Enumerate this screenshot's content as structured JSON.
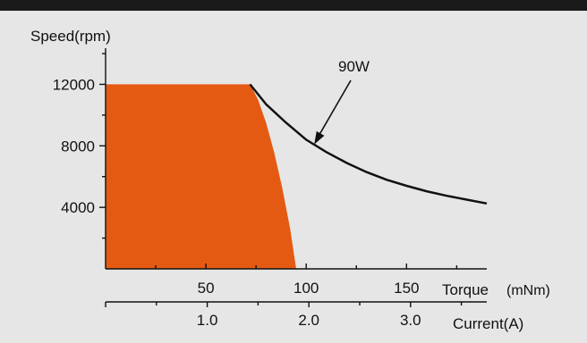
{
  "chart_data": {
    "type": "area",
    "title": "",
    "ylabel": "Speed(rpm)",
    "xlabel_torque": "Torque",
    "xlabel_torque_unit": "(mNm)",
    "xlabel_current": "Current(A)",
    "ylim": [
      0,
      14000
    ],
    "xlim_torque": [
      0,
      190
    ],
    "xlim_current": [
      0,
      3.75
    ],
    "y_ticks": [
      4000,
      8000,
      12000
    ],
    "y_minor_ticks": [
      2000,
      6000,
      10000,
      14000
    ],
    "y_tick_labels": [
      "4000",
      "8000",
      "12000"
    ],
    "torque_ticks": [
      50,
      100,
      150
    ],
    "torque_minor_ticks": [
      25,
      75,
      125,
      175
    ],
    "torque_tick_labels": [
      "50",
      "100",
      "150"
    ],
    "current_ticks": [
      1.0,
      2.0,
      3.0
    ],
    "current_minor_ticks": [
      0.5,
      1.5,
      2.5,
      3.5
    ],
    "current_tick_labels": [
      "1.0",
      "2.0",
      "3.0"
    ],
    "series": [
      {
        "name": "90W",
        "kind": "line",
        "x": [
          72,
          80,
          90,
          100,
          110,
          120,
          130,
          140,
          150,
          160,
          170,
          180,
          190
        ],
        "y": [
          12000,
          10700,
          9500,
          8400,
          7600,
          6900,
          6300,
          5800,
          5400,
          5050,
          4750,
          4500,
          4250
        ]
      },
      {
        "kind": "area",
        "color": "#e55a12",
        "x": [
          0,
          72,
          76,
          80,
          84,
          88,
          92,
          95,
          95,
          0
        ],
        "y": [
          12000,
          12000,
          11000,
          9500,
          7600,
          5300,
          2600,
          0,
          0,
          0
        ]
      }
    ],
    "annotation": {
      "text": "90W",
      "points_to_x": 104,
      "points_to_y": 8100
    }
  },
  "colors": {
    "background": "#e6e6e6",
    "top_bar": "#1a1a1a",
    "area": "#e55a12",
    "line": "#111111"
  }
}
